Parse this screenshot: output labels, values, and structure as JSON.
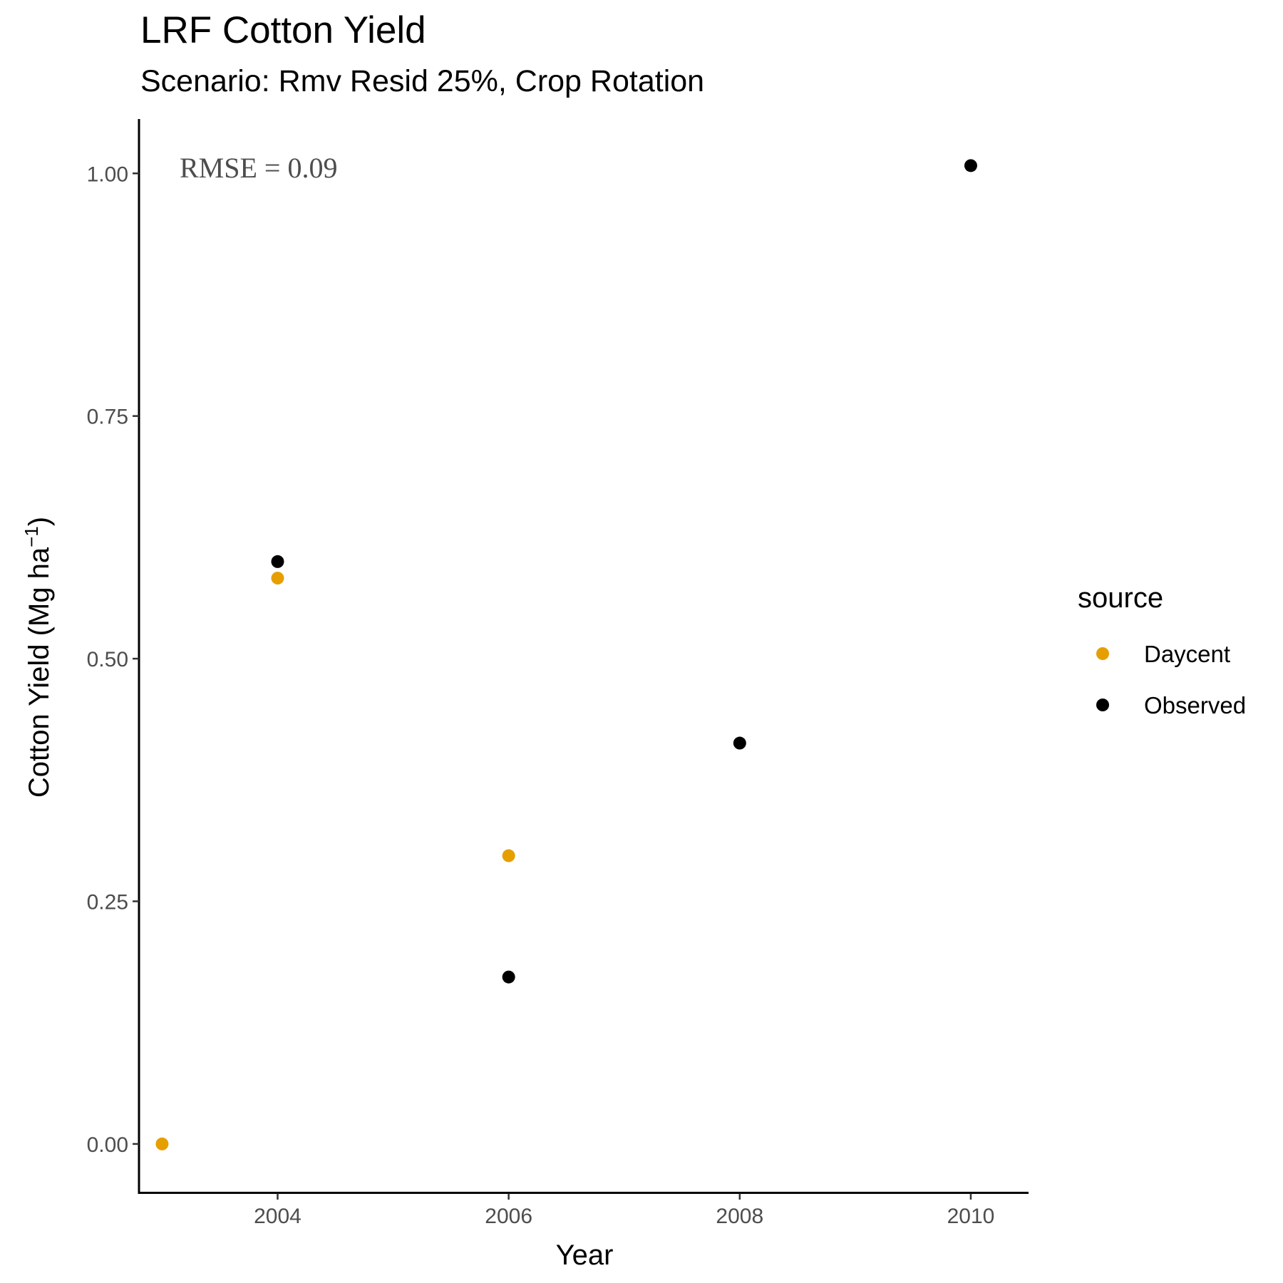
{
  "chart_data": {
    "type": "scatter",
    "title": "LRF Cotton Yield",
    "subtitle": "Scenario: Rmv Resid 25%, Crop Rotation",
    "xlabel": "Year",
    "ylabel_main": "Cotton Yield (Mg ha",
    "ylabel_sup": "−1",
    "ylabel_close": ")",
    "xlim": [
      2002.8,
      2010.5
    ],
    "ylim": [
      -0.05,
      1.056
    ],
    "x_ticks": [
      2004,
      2006,
      2008,
      2010
    ],
    "x_tick_labels": [
      "2004",
      "2006",
      "2008",
      "2010"
    ],
    "y_ticks": [
      0,
      0.25,
      0.5,
      0.75,
      1.0
    ],
    "y_tick_labels": [
      "0.00",
      "0.25",
      "0.50",
      "0.75",
      "1.00"
    ],
    "grid": false,
    "annotation": "RMSE = 0.09",
    "legend": {
      "title": "source",
      "position": "right"
    },
    "series": [
      {
        "name": "Daycent",
        "color": "#E69F00",
        "points": [
          {
            "x": 2003,
            "y": 0.0
          },
          {
            "x": 2004,
            "y": 0.583
          },
          {
            "x": 2006,
            "y": 0.297
          }
        ]
      },
      {
        "name": "Observed",
        "color": "#000000",
        "points": [
          {
            "x": 2004,
            "y": 0.6
          },
          {
            "x": 2006,
            "y": 0.172
          },
          {
            "x": 2008,
            "y": 0.413
          },
          {
            "x": 2010,
            "y": 1.008
          }
        ]
      }
    ]
  }
}
